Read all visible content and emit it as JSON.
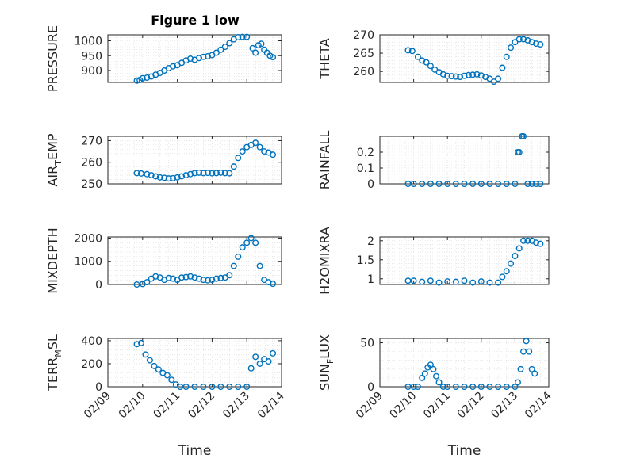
{
  "title": "Figure 1 low",
  "colors": {
    "marker": "#0072bd",
    "axis": "#262626",
    "grid": "#d9d9d9"
  },
  "chart_data": [
    {
      "type": "scatter",
      "ylabel": "PRESSURE",
      "ylabel_main": "PRESSURE",
      "ylabel_sub": "",
      "ylabel_tail": "",
      "ylim": [
        860,
        1020
      ],
      "yticks": [
        900,
        950,
        1000
      ],
      "x": [
        "02/09 20:00",
        "02/09 22:00",
        "02/10 00:00",
        "02/10 03:00",
        "02/10 06:00",
        "02/10 09:00",
        "02/10 12:00",
        "02/10 15:00",
        "02/10 18:00",
        "02/10 21:00",
        "02/11 00:00",
        "02/11 03:00",
        "02/11 06:00",
        "02/11 09:00",
        "02/11 12:00",
        "02/11 15:00",
        "02/11 18:00",
        "02/11 21:00",
        "02/12 00:00",
        "02/12 03:00",
        "02/12 06:00",
        "02/12 09:00",
        "02/12 12:00",
        "02/12 15:00",
        "02/12 18:00",
        "02/12 21:00",
        "02/13 00:00",
        "02/13 04:00",
        "02/13 06:00",
        "02/13 08:00",
        "02/13 10:00",
        "02/13 12:00",
        "02/13 14:00",
        "02/13 16:00",
        "02/13 18:00"
      ],
      "y": [
        866,
        868,
        874,
        876,
        880,
        886,
        892,
        900,
        908,
        914,
        918,
        926,
        934,
        940,
        936,
        942,
        946,
        948,
        952,
        960,
        970,
        980,
        992,
        1005,
        1012,
        1013,
        1013,
        975,
        960,
        985,
        990,
        970,
        960,
        950,
        945
      ]
    },
    {
      "type": "scatter",
      "ylabel": "THETA",
      "ylabel_main": "THETA",
      "ylabel_sub": "",
      "ylabel_tail": "",
      "ylim": [
        257,
        270
      ],
      "yticks": [
        260,
        265,
        270
      ],
      "x": [
        "02/09 20:00",
        "02/09 23:00",
        "02/10 03:00",
        "02/10 06:00",
        "02/10 09:00",
        "02/10 12:00",
        "02/10 15:00",
        "02/10 18:00",
        "02/10 21:00",
        "02/11 00:00",
        "02/11 03:00",
        "02/11 06:00",
        "02/11 09:00",
        "02/11 12:00",
        "02/11 15:00",
        "02/11 18:00",
        "02/11 21:00",
        "02/12 00:00",
        "02/12 03:00",
        "02/12 06:00",
        "02/12 09:00",
        "02/12 12:00",
        "02/12 15:00",
        "02/12 18:00",
        "02/12 21:00",
        "02/13 00:00",
        "02/13 03:00",
        "02/13 06:00",
        "02/13 09:00",
        "02/13 12:00",
        "02/13 15:00",
        "02/13 18:00"
      ],
      "y": [
        265.8,
        265.6,
        264,
        263,
        262.5,
        261.5,
        260.5,
        259.8,
        259.2,
        258.8,
        258.7,
        258.6,
        258.5,
        258.8,
        259,
        259.1,
        259.2,
        258.9,
        258.5,
        258,
        257.2,
        258,
        261,
        264,
        266.5,
        268,
        268.8,
        268.8,
        268.5,
        268,
        267.6,
        267.4
      ]
    },
    {
      "type": "scatter",
      "ylabel": "AIR_TEMP",
      "ylabel_main": "AIR",
      "ylabel_sub": "T",
      "ylabel_tail": "EMP",
      "ylim": [
        250,
        272
      ],
      "yticks": [
        250,
        260,
        270
      ],
      "x": [
        "02/09 20:00",
        "02/09 23:00",
        "02/10 03:00",
        "02/10 06:00",
        "02/10 09:00",
        "02/10 12:00",
        "02/10 15:00",
        "02/10 18:00",
        "02/10 21:00",
        "02/11 00:00",
        "02/11 03:00",
        "02/11 06:00",
        "02/11 09:00",
        "02/11 12:00",
        "02/11 15:00",
        "02/11 18:00",
        "02/11 21:00",
        "02/12 00:00",
        "02/12 03:00",
        "02/12 06:00",
        "02/12 09:00",
        "02/12 12:00",
        "02/12 15:00",
        "02/12 18:00",
        "02/12 21:00",
        "02/13 00:00",
        "02/13 03:00",
        "02/13 06:00",
        "02/13 09:00",
        "02/13 12:00",
        "02/13 15:00",
        "02/13 18:00"
      ],
      "y": [
        255,
        254.8,
        254.5,
        254,
        253.5,
        253,
        252.8,
        252.5,
        252.6,
        253,
        253.5,
        254,
        254.5,
        255,
        255.2,
        255,
        255.1,
        254.9,
        255,
        255.2,
        255,
        254.9,
        258,
        262,
        265,
        267,
        268,
        269,
        267,
        265,
        264.5,
        263.5
      ]
    },
    {
      "type": "scatter",
      "ylabel": "RAINFALL",
      "ylabel_main": "RAINFALL",
      "ylabel_sub": "",
      "ylabel_tail": "",
      "ylim": [
        0,
        0.3
      ],
      "yticks": [
        0,
        0.1,
        0.2
      ],
      "x": [
        "02/09 20:00",
        "02/10 00:00",
        "02/10 06:00",
        "02/10 12:00",
        "02/10 18:00",
        "02/11 00:00",
        "02/11 06:00",
        "02/11 12:00",
        "02/11 18:00",
        "02/12 00:00",
        "02/12 06:00",
        "02/12 12:00",
        "02/12 18:00",
        "02/13 00:00",
        "02/13 02:00",
        "02/13 03:00",
        "02/13 05:00",
        "02/13 06:00",
        "02/13 09:00",
        "02/13 12:00",
        "02/13 15:00",
        "02/13 18:00"
      ],
      "y": [
        0,
        0,
        0,
        0,
        0,
        0,
        0,
        0,
        0,
        0,
        0,
        0,
        0,
        0,
        0.2,
        0.2,
        0.3,
        0.3,
        0,
        0,
        0,
        0
      ]
    },
    {
      "type": "scatter",
      "ylabel": "MIXDEPTH",
      "ylabel_main": "MIXDEPTH",
      "ylabel_sub": "",
      "ylabel_tail": "",
      "ylim": [
        0,
        2050
      ],
      "yticks": [
        0,
        1000,
        2000
      ],
      "x": [
        "02/09 20:00",
        "02/10 00:00",
        "02/10 03:00",
        "02/10 06:00",
        "02/10 09:00",
        "02/10 12:00",
        "02/10 15:00",
        "02/10 18:00",
        "02/10 21:00",
        "02/11 00:00",
        "02/11 03:00",
        "02/11 06:00",
        "02/11 09:00",
        "02/11 12:00",
        "02/11 15:00",
        "02/11 18:00",
        "02/11 21:00",
        "02/12 00:00",
        "02/12 03:00",
        "02/12 06:00",
        "02/12 09:00",
        "02/12 12:00",
        "02/12 15:00",
        "02/12 18:00",
        "02/12 21:00",
        "02/13 00:00",
        "02/13 03:00",
        "02/13 06:00",
        "02/13 09:00",
        "02/13 12:00",
        "02/13 15:00",
        "02/13 18:00"
      ],
      "y": [
        0,
        20,
        100,
        250,
        350,
        300,
        200,
        280,
        250,
        200,
        300,
        320,
        350,
        300,
        250,
        200,
        180,
        200,
        250,
        280,
        300,
        400,
        800,
        1200,
        1600,
        1800,
        2000,
        1800,
        800,
        200,
        100,
        30
      ]
    },
    {
      "type": "scatter",
      "ylabel": "H2OMIXRA",
      "ylabel_main": "H2OMIXRA",
      "ylabel_sub": "",
      "ylabel_tail": "",
      "ylim": [
        0.85,
        2.1
      ],
      "yticks": [
        1,
        1.5,
        2
      ],
      "x": [
        "02/09 20:00",
        "02/10 00:00",
        "02/10 06:00",
        "02/10 12:00",
        "02/10 18:00",
        "02/11 00:00",
        "02/11 06:00",
        "02/11 12:00",
        "02/11 18:00",
        "02/12 00:00",
        "02/12 06:00",
        "02/12 12:00",
        "02/12 15:00",
        "02/12 18:00",
        "02/12 21:00",
        "02/13 00:00",
        "02/13 03:00",
        "02/13 06:00",
        "02/13 09:00",
        "02/13 12:00",
        "02/13 15:00",
        "02/13 18:00"
      ],
      "y": [
        0.95,
        0.95,
        0.92,
        0.95,
        0.9,
        0.93,
        0.92,
        0.95,
        0.9,
        0.93,
        0.9,
        0.9,
        1.05,
        1.2,
        1.4,
        1.6,
        1.8,
        2,
        2,
        2,
        1.95,
        1.92
      ]
    },
    {
      "type": "scatter",
      "ylabel": "TERR_MSL",
      "ylabel_main": "TERR",
      "ylabel_sub": "M",
      "ylabel_tail": "SL",
      "ylim": [
        0,
        420
      ],
      "yticks": [
        0,
        200,
        400
      ],
      "x": [
        "02/09 20:00",
        "02/09 23:00",
        "02/10 02:00",
        "02/10 05:00",
        "02/10 08:00",
        "02/10 11:00",
        "02/10 14:00",
        "02/10 17:00",
        "02/10 20:00",
        "02/10 23:00",
        "02/11 02:00",
        "02/11 06:00",
        "02/11 12:00",
        "02/11 18:00",
        "02/12 00:00",
        "02/12 06:00",
        "02/12 12:00",
        "02/12 18:00",
        "02/13 00:00",
        "02/13 03:00",
        "02/13 06:00",
        "02/13 09:00",
        "02/13 12:00",
        "02/13 15:00",
        "02/13 18:00"
      ],
      "y": [
        370,
        380,
        280,
        230,
        180,
        150,
        120,
        100,
        60,
        20,
        0,
        0,
        0,
        0,
        0,
        0,
        0,
        0,
        0,
        160,
        260,
        200,
        240,
        220,
        290
      ]
    },
    {
      "type": "scatter",
      "ylabel": "SUN_FLUX",
      "ylabel_main": "SUN",
      "ylabel_sub": "F",
      "ylabel_tail": "LUX",
      "ylim": [
        0,
        55
      ],
      "yticks": [
        0,
        50
      ],
      "x": [
        "02/09 20:00",
        "02/10 00:00",
        "02/10 03:00",
        "02/10 06:00",
        "02/10 08:00",
        "02/10 10:00",
        "02/10 12:00",
        "02/10 14:00",
        "02/10 16:00",
        "02/10 18:00",
        "02/10 21:00",
        "02/11 00:00",
        "02/11 06:00",
        "02/11 12:00",
        "02/11 18:00",
        "02/12 00:00",
        "02/12 06:00",
        "02/12 12:00",
        "02/12 18:00",
        "02/13 00:00",
        "02/13 02:00",
        "02/13 04:00",
        "02/13 06:00",
        "02/13 08:00",
        "02/13 10:00",
        "02/13 12:00",
        "02/13 14:00"
      ],
      "y": [
        0,
        0,
        0,
        10,
        15,
        22,
        25,
        20,
        12,
        5,
        0,
        0,
        0,
        0,
        0,
        0,
        0,
        0,
        0,
        0,
        5,
        20,
        40,
        52,
        40,
        20,
        15
      ]
    }
  ],
  "xaxis": {
    "ticks": [
      "02/09",
      "02/10",
      "02/11",
      "02/12",
      "02/13",
      "02/14"
    ],
    "xlim": [
      "02/09",
      "02/14"
    ],
    "label": "Time"
  }
}
